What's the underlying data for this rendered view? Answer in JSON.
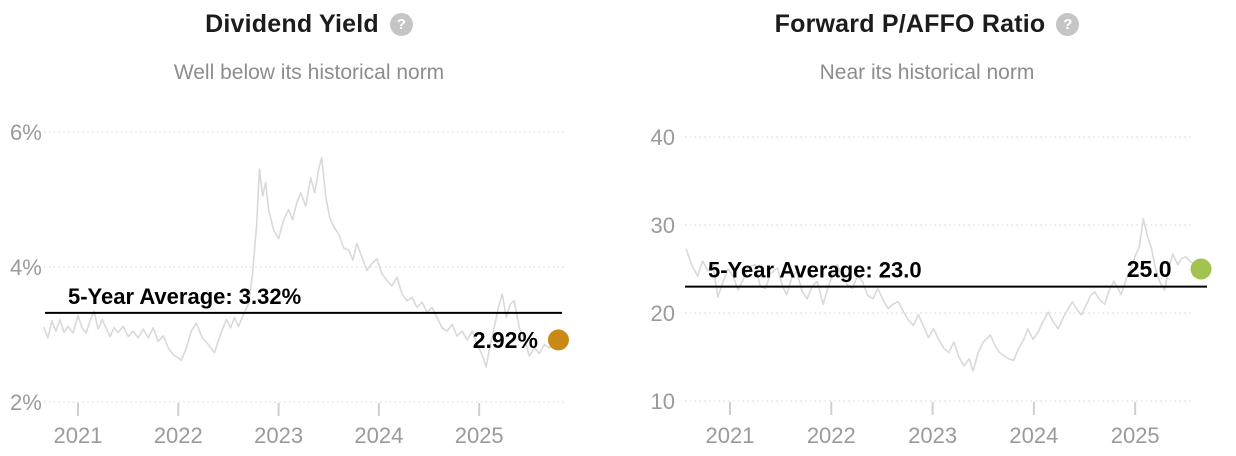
{
  "icons": {
    "help_glyph": "?"
  },
  "colors": {
    "title": "#1c1c1c",
    "subtitle": "#8d8d8d",
    "axis_text": "#9a9a9a",
    "grid": "#dedede",
    "tick": "#cfcfcf",
    "series_line": "#d9d9d9",
    "average_line": "#000000",
    "value_text": "#000000",
    "help_icon_bg": "#c5c5c5",
    "dividend_dot": "#c88a15",
    "paffo_dot": "#a2c34f"
  },
  "chart_data": [
    {
      "type": "line",
      "title": "Dividend Yield",
      "subtitle": "Well below its historical norm",
      "series_name": "Dividend Yield (%)",
      "xtick_labels": [
        "2021",
        "2022",
        "2023",
        "2024",
        "2025"
      ],
      "xtick_values": [
        2021,
        2022,
        2023,
        2024,
        2025
      ],
      "ytick_labels": [
        "6%",
        "4%",
        "2%"
      ],
      "ytick_values": [
        6,
        4,
        2
      ],
      "ylim": [
        1.9,
        6.3
      ],
      "grid": "dotted",
      "legend": "none",
      "average": {
        "label": "5-Year Average: 3.32%",
        "value": 3.32
      },
      "current": {
        "label": "2.92%",
        "value": 2.92,
        "x": 2025.79,
        "dot_color": "#c88a15"
      },
      "points": [
        [
          2020.66,
          3.1
        ],
        [
          2020.7,
          2.95
        ],
        [
          2020.74,
          3.2
        ],
        [
          2020.78,
          3.05
        ],
        [
          2020.82,
          3.22
        ],
        [
          2020.86,
          3.03
        ],
        [
          2020.9,
          3.12
        ],
        [
          2020.95,
          3.02
        ],
        [
          2021.0,
          3.28
        ],
        [
          2021.04,
          3.1
        ],
        [
          2021.08,
          3.02
        ],
        [
          2021.12,
          3.2
        ],
        [
          2021.16,
          3.35
        ],
        [
          2021.2,
          3.08
        ],
        [
          2021.24,
          3.22
        ],
        [
          2021.28,
          3.1
        ],
        [
          2021.32,
          2.97
        ],
        [
          2021.36,
          3.1
        ],
        [
          2021.4,
          3.03
        ],
        [
          2021.45,
          3.12
        ],
        [
          2021.5,
          2.97
        ],
        [
          2021.55,
          3.05
        ],
        [
          2021.6,
          2.95
        ],
        [
          2021.65,
          3.08
        ],
        [
          2021.7,
          2.95
        ],
        [
          2021.75,
          3.1
        ],
        [
          2021.8,
          2.9
        ],
        [
          2021.85,
          2.98
        ],
        [
          2021.9,
          2.8
        ],
        [
          2021.95,
          2.7
        ],
        [
          2022.0,
          2.65
        ],
        [
          2022.03,
          2.62
        ],
        [
          2022.08,
          2.8
        ],
        [
          2022.13,
          3.05
        ],
        [
          2022.18,
          3.17
        ],
        [
          2022.24,
          2.95
        ],
        [
          2022.3,
          2.85
        ],
        [
          2022.36,
          2.73
        ],
        [
          2022.42,
          3.0
        ],
        [
          2022.48,
          3.22
        ],
        [
          2022.52,
          3.1
        ],
        [
          2022.56,
          3.25
        ],
        [
          2022.6,
          3.12
        ],
        [
          2022.65,
          3.3
        ],
        [
          2022.7,
          3.45
        ],
        [
          2022.74,
          3.9
        ],
        [
          2022.78,
          4.6
        ],
        [
          2022.81,
          5.45
        ],
        [
          2022.84,
          5.05
        ],
        [
          2022.87,
          5.25
        ],
        [
          2022.9,
          4.85
        ],
        [
          2022.95,
          4.55
        ],
        [
          2023.0,
          4.42
        ],
        [
          2023.05,
          4.7
        ],
        [
          2023.1,
          4.85
        ],
        [
          2023.14,
          4.7
        ],
        [
          2023.18,
          4.95
        ],
        [
          2023.22,
          5.1
        ],
        [
          2023.27,
          4.9
        ],
        [
          2023.32,
          5.32
        ],
        [
          2023.36,
          5.1
        ],
        [
          2023.4,
          5.45
        ],
        [
          2023.43,
          5.62
        ],
        [
          2023.47,
          5.05
        ],
        [
          2023.51,
          4.72
        ],
        [
          2023.55,
          4.6
        ],
        [
          2023.6,
          4.48
        ],
        [
          2023.65,
          4.28
        ],
        [
          2023.7,
          4.25
        ],
        [
          2023.74,
          4.1
        ],
        [
          2023.78,
          4.35
        ],
        [
          2023.83,
          4.15
        ],
        [
          2023.88,
          3.95
        ],
        [
          2023.93,
          4.05
        ],
        [
          2023.98,
          4.12
        ],
        [
          2024.03,
          3.9
        ],
        [
          2024.08,
          3.8
        ],
        [
          2024.13,
          3.72
        ],
        [
          2024.18,
          3.85
        ],
        [
          2024.23,
          3.6
        ],
        [
          2024.28,
          3.5
        ],
        [
          2024.33,
          3.55
        ],
        [
          2024.38,
          3.4
        ],
        [
          2024.43,
          3.48
        ],
        [
          2024.48,
          3.33
        ],
        [
          2024.53,
          3.4
        ],
        [
          2024.58,
          3.25
        ],
        [
          2024.63,
          3.1
        ],
        [
          2024.68,
          3.05
        ],
        [
          2024.73,
          3.15
        ],
        [
          2024.78,
          2.98
        ],
        [
          2024.83,
          3.05
        ],
        [
          2024.88,
          2.92
        ],
        [
          2024.93,
          3.05
        ],
        [
          2024.98,
          2.85
        ],
        [
          2025.03,
          2.7
        ],
        [
          2025.07,
          2.52
        ],
        [
          2025.11,
          2.85
        ],
        [
          2025.15,
          3.1
        ],
        [
          2025.19,
          3.4
        ],
        [
          2025.23,
          3.6
        ],
        [
          2025.27,
          3.25
        ],
        [
          2025.31,
          3.45
        ],
        [
          2025.35,
          3.5
        ],
        [
          2025.4,
          3.1
        ],
        [
          2025.45,
          2.95
        ],
        [
          2025.5,
          2.68
        ],
        [
          2025.55,
          2.8
        ],
        [
          2025.6,
          2.72
        ],
        [
          2025.65,
          2.85
        ],
        [
          2025.7,
          2.8
        ],
        [
          2025.75,
          2.88
        ],
        [
          2025.79,
          2.92
        ]
      ]
    },
    {
      "type": "line",
      "title": "Forward P/AFFO Ratio",
      "subtitle": "Near its historical norm",
      "series_name": "Forward P/AFFO",
      "xtick_labels": [
        "2021",
        "2022",
        "2023",
        "2024",
        "2025"
      ],
      "xtick_values": [
        2021,
        2022,
        2023,
        2024,
        2025
      ],
      "ytick_labels": [
        "40",
        "30",
        "20",
        "10"
      ],
      "ytick_values": [
        40,
        30,
        20,
        10
      ],
      "ylim": [
        9,
        42
      ],
      "grid": "dotted",
      "legend": "none",
      "average": {
        "label": "5-Year Average: 23.0",
        "value": 23.0
      },
      "current": {
        "label": "25.0",
        "value": 25.0,
        "x": 2025.65,
        "dot_color": "#a2c34f"
      },
      "points": [
        [
          2020.57,
          27.2
        ],
        [
          2020.62,
          25.5
        ],
        [
          2020.68,
          24.2
        ],
        [
          2020.73,
          25.9
        ],
        [
          2020.78,
          24.8
        ],
        [
          2020.83,
          25.6
        ],
        [
          2020.88,
          21.8
        ],
        [
          2020.93,
          23.5
        ],
        [
          2020.98,
          25.0
        ],
        [
          2021.03,
          24.2
        ],
        [
          2021.08,
          22.6
        ],
        [
          2021.13,
          23.8
        ],
        [
          2021.18,
          25.2
        ],
        [
          2021.25,
          25.5
        ],
        [
          2021.3,
          23.0
        ],
        [
          2021.35,
          22.8
        ],
        [
          2021.4,
          24.5
        ],
        [
          2021.47,
          25.1
        ],
        [
          2021.52,
          23.0
        ],
        [
          2021.56,
          22.1
        ],
        [
          2021.61,
          24.0
        ],
        [
          2021.66,
          24.7
        ],
        [
          2021.71,
          22.5
        ],
        [
          2021.76,
          21.6
        ],
        [
          2021.81,
          23.0
        ],
        [
          2021.86,
          23.6
        ],
        [
          2021.92,
          21.0
        ],
        [
          2021.97,
          23.0
        ],
        [
          2022.02,
          24.5
        ],
        [
          2022.06,
          25.5
        ],
        [
          2022.11,
          24.0
        ],
        [
          2022.16,
          23.2
        ],
        [
          2022.21,
          22.8
        ],
        [
          2022.26,
          24.3
        ],
        [
          2022.31,
          23.5
        ],
        [
          2022.36,
          22.0
        ],
        [
          2022.41,
          21.6
        ],
        [
          2022.46,
          22.8
        ],
        [
          2022.51,
          21.5
        ],
        [
          2022.56,
          20.5
        ],
        [
          2022.61,
          21.0
        ],
        [
          2022.66,
          21.3
        ],
        [
          2022.71,
          20.2
        ],
        [
          2022.76,
          19.2
        ],
        [
          2022.81,
          18.6
        ],
        [
          2022.86,
          19.8
        ],
        [
          2022.91,
          18.5
        ],
        [
          2022.96,
          17.2
        ],
        [
          2023.01,
          18.2
        ],
        [
          2023.06,
          17.0
        ],
        [
          2023.11,
          16.0
        ],
        [
          2023.16,
          15.5
        ],
        [
          2023.21,
          16.7
        ],
        [
          2023.26,
          15.0
        ],
        [
          2023.31,
          14.0
        ],
        [
          2023.36,
          14.8
        ],
        [
          2023.4,
          13.4
        ],
        [
          2023.45,
          15.5
        ],
        [
          2023.5,
          16.7
        ],
        [
          2023.57,
          17.5
        ],
        [
          2023.62,
          16.2
        ],
        [
          2023.66,
          15.5
        ],
        [
          2023.7,
          15.2
        ],
        [
          2023.75,
          14.8
        ],
        [
          2023.8,
          14.6
        ],
        [
          2023.85,
          16.0
        ],
        [
          2023.9,
          17.0
        ],
        [
          2023.94,
          18.2
        ],
        [
          2023.99,
          17.0
        ],
        [
          2024.04,
          17.8
        ],
        [
          2024.09,
          19.0
        ],
        [
          2024.14,
          20.1
        ],
        [
          2024.19,
          19.0
        ],
        [
          2024.24,
          18.2
        ],
        [
          2024.29,
          19.5
        ],
        [
          2024.34,
          20.5
        ],
        [
          2024.38,
          21.3
        ],
        [
          2024.43,
          20.3
        ],
        [
          2024.47,
          19.8
        ],
        [
          2024.52,
          21.0
        ],
        [
          2024.56,
          22.0
        ],
        [
          2024.6,
          22.4
        ],
        [
          2024.65,
          21.5
        ],
        [
          2024.7,
          21.0
        ],
        [
          2024.74,
          22.5
        ],
        [
          2024.79,
          23.6
        ],
        [
          2024.83,
          22.8
        ],
        [
          2024.86,
          22.1
        ],
        [
          2024.91,
          23.8
        ],
        [
          2024.96,
          25.1
        ],
        [
          2025.0,
          26.5
        ],
        [
          2025.04,
          27.5
        ],
        [
          2025.08,
          30.7
        ],
        [
          2025.12,
          28.8
        ],
        [
          2025.16,
          27.4
        ],
        [
          2025.2,
          25.0
        ],
        [
          2025.24,
          23.6
        ],
        [
          2025.29,
          22.6
        ],
        [
          2025.33,
          25.0
        ],
        [
          2025.37,
          26.7
        ],
        [
          2025.42,
          25.5
        ],
        [
          2025.46,
          26.2
        ],
        [
          2025.5,
          26.4
        ],
        [
          2025.55,
          25.8
        ],
        [
          2025.6,
          25.4
        ],
        [
          2025.65,
          25.0
        ]
      ]
    }
  ]
}
